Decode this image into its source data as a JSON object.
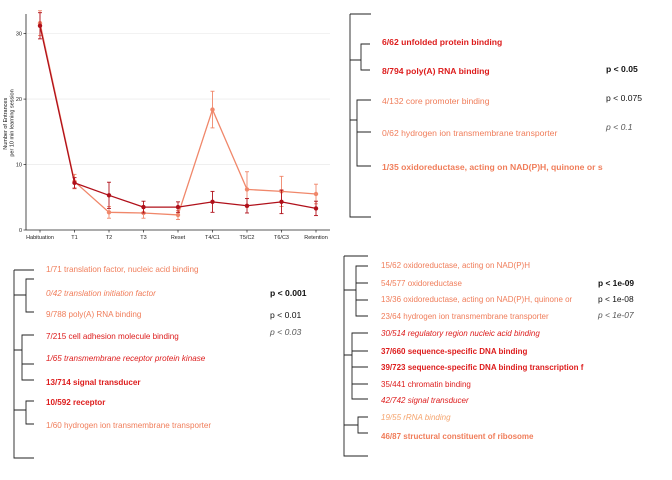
{
  "chart_data": [
    {
      "type": "line",
      "ylabel": "Number of Entrances\nper 10 min learning session",
      "ylim": [
        0,
        33
      ],
      "yticks": [
        "0",
        "10",
        "20",
        "30"
      ],
      "categories": [
        "Habituation",
        "T1",
        "T2",
        "T3",
        "Reset",
        "T4/C1",
        "T5/C2",
        "T6/C3",
        "Retention"
      ],
      "series": [
        {
          "color": "#b0101a",
          "values": [
            31.2,
            7.2,
            5.3,
            3.5,
            3.5,
            4.3,
            3.7,
            4.3,
            3.3
          ],
          "errors": [
            2.0,
            0.8,
            2.0,
            0.9,
            0.8,
            1.6,
            1.1,
            1.8,
            1.1
          ]
        },
        {
          "color": "#f0876a",
          "values": [
            31.6,
            7.4,
            2.7,
            2.6,
            2.3,
            18.4,
            6.2,
            5.9,
            5.5
          ],
          "errors": [
            1.9,
            1.1,
            0.9,
            0.8,
            0.7,
            2.8,
            2.7,
            2.3,
            1.5
          ]
        }
      ]
    }
  ],
  "colors": {
    "red": "#dd1c1c",
    "salmon": "#f07d5a",
    "peach": "#f5a46e",
    "black": "#111111",
    "gray": "#555555"
  },
  "top_right_panel": {
    "items": [
      {
        "text": "6/62 unfolded protein binding",
        "color": "red",
        "style": "bold"
      },
      {
        "text": "8/794 poly(A) RNA binding",
        "color": "red",
        "style": "bold"
      },
      {
        "text": "4/132 core promoter binding",
        "color": "salmon",
        "style": "normal"
      },
      {
        "text": "0/62 hydrogen ion transmembrane transporter",
        "color": "salmon",
        "style": "normal"
      },
      {
        "text": "1/35 oxidoreductase, acting on NAD(P)H, quinone or s",
        "color": "salmon",
        "style": "bold"
      }
    ],
    "legend": [
      {
        "text": "p < 0.05",
        "style": "bold",
        "color": "black"
      },
      {
        "text": "p < 0.075",
        "style": "normal",
        "color": "black"
      },
      {
        "text": "p < 0.1",
        "style": "italic",
        "color": "gray"
      }
    ]
  },
  "bottom_left_panel": {
    "items": [
      {
        "text": "1/71 translation factor, nucleic acid binding",
        "color": "salmon",
        "style": "normal"
      },
      {
        "text": "0/42 translation initiation factor",
        "color": "salmon",
        "style": "italic"
      },
      {
        "text": "9/788 poly(A) RNA binding",
        "color": "salmon",
        "style": "normal"
      },
      {
        "text": "7/215 cell adhesion molecule binding",
        "color": "red",
        "style": "normal"
      },
      {
        "text": "1/65 transmembrane receptor protein kinase",
        "color": "red",
        "style": "italic"
      },
      {
        "text": "13/714 signal transducer",
        "color": "red",
        "style": "bold"
      },
      {
        "text": "10/592 receptor",
        "color": "red",
        "style": "bold"
      },
      {
        "text": "1/60 hydrogen ion transmembrane transporter",
        "color": "salmon",
        "style": "normal"
      }
    ],
    "legend": [
      {
        "text": "p < 0.001",
        "style": "bold",
        "color": "black"
      },
      {
        "text": "p < 0.01",
        "style": "normal",
        "color": "black"
      },
      {
        "text": "p < 0.03",
        "style": "italic",
        "color": "gray"
      }
    ]
  },
  "bottom_right_panel": {
    "items": [
      {
        "text": "15/62 oxidoreductase, acting on NAD(P)H",
        "color": "salmon",
        "style": "normal"
      },
      {
        "text": "54/577 oxidoreductase",
        "color": "salmon",
        "style": "normal"
      },
      {
        "text": "13/36 oxidoreductase, acting on NAD(P)H, quinone or",
        "color": "salmon",
        "style": "normal"
      },
      {
        "text": "23/64 hydrogen ion transmembrane transporter",
        "color": "salmon",
        "style": "normal"
      },
      {
        "text": "30/514 regulatory region nucleic acid binding",
        "color": "red",
        "style": "italic"
      },
      {
        "text": "37/660 sequence-specific DNA binding",
        "color": "red",
        "style": "bold"
      },
      {
        "text": "39/723 sequence-specific DNA binding transcription f",
        "color": "red",
        "style": "bold"
      },
      {
        "text": "35/441 chromatin binding",
        "color": "red",
        "style": "normal"
      },
      {
        "text": "42/742 signal transducer",
        "color": "red",
        "style": "italic"
      },
      {
        "text": "19/55 rRNA binding",
        "color": "peach",
        "style": "italic"
      },
      {
        "text": "46/87 structural constituent of ribosome",
        "color": "salmon",
        "style": "bold"
      }
    ],
    "legend": [
      {
        "text": "p < 1e-09",
        "style": "bold",
        "color": "black"
      },
      {
        "text": "p < 1e-08",
        "style": "normal",
        "color": "black"
      },
      {
        "text": "p < 1e-07",
        "style": "italic",
        "color": "gray"
      }
    ]
  }
}
